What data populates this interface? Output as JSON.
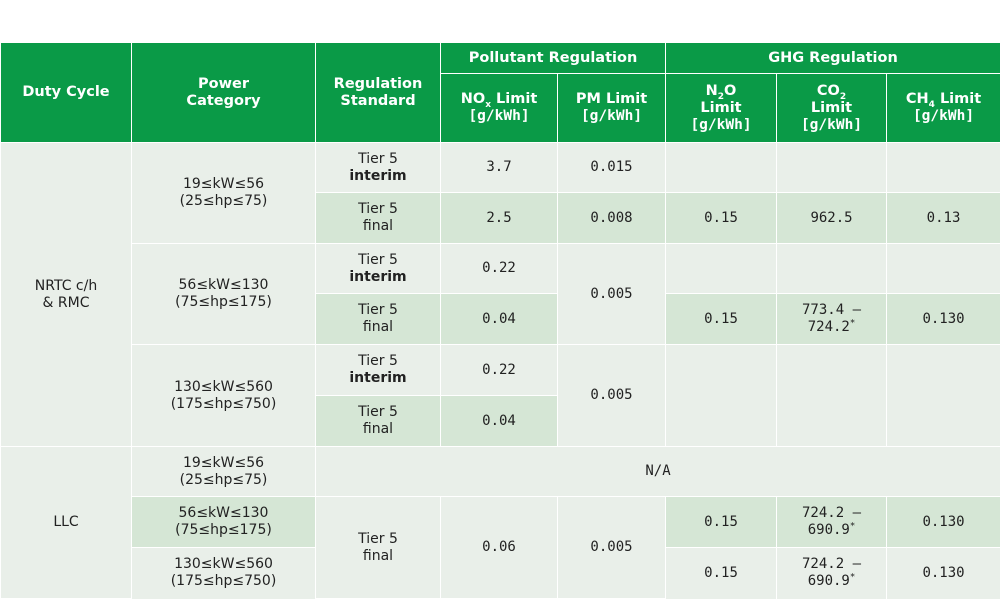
{
  "headers": {
    "duty_cycle": "Duty Cycle",
    "power_category": [
      "Power",
      "Category"
    ],
    "regulation_standard": [
      "Regulation",
      "Standard"
    ],
    "pollutant_regulation": "Pollutant Regulation",
    "ghg_regulation": "GHG Regulation",
    "nox": {
      "pre": "NO",
      "sub": "x",
      "post": " Limit",
      "unit": "[g/kWh]"
    },
    "pm": {
      "text": "PM Limit",
      "unit": "[g/kWh]"
    },
    "n2o": {
      "pre": "N",
      "sub": "2",
      "post": "O",
      "line2": "Limit",
      "unit": "[g/kWh]"
    },
    "co2": {
      "pre": "CO",
      "sub": "2",
      "line2": "Limit",
      "unit": "[g/kWh]"
    },
    "ch4": {
      "pre": "CH",
      "sub": "4",
      "post": " Limit",
      "unit": "[g/kWh]"
    }
  },
  "nrtc": {
    "duty_cycle": [
      "NRTC c/h",
      "& RMC"
    ],
    "power": [
      [
        "19≤kW≤56",
        "(25≤hp≤75)"
      ],
      [
        "56≤kW≤130",
        "(75≤hp≤175)"
      ],
      [
        "130≤kW≤560",
        "(175≤hp≤750)"
      ]
    ],
    "tier": "Tier 5",
    "interim": "interim",
    "final": "final",
    "g1": {
      "nox_interim": "3.7",
      "pm_interim": "0.015",
      "nox_final": "2.5",
      "pm_final": "0.008",
      "n2o": "0.15",
      "co2": "962.5",
      "ch4": "0.13"
    },
    "g2": {
      "nox_interim": "0.22",
      "nox_final": "0.04",
      "pm": "0.005",
      "n2o": "0.15",
      "co2": [
        "773.4 –",
        "724.2"
      ],
      "ch4": "0.130"
    },
    "g3": {
      "nox_interim": "0.22",
      "nox_final": "0.04",
      "pm": "0.005"
    }
  },
  "llc": {
    "duty_cycle": "LLC",
    "power": [
      [
        "19≤kW≤56",
        "(25≤hp≤75)"
      ],
      [
        "56≤kW≤130",
        "(75≤hp≤175)"
      ],
      [
        "130≤kW≤560",
        "(175≤hp≤750)"
      ]
    ],
    "na": "N/A",
    "tier": "Tier 5",
    "final": "final",
    "nox": "0.06",
    "pm": "0.005",
    "row2": {
      "n2o": "0.15",
      "co2": [
        "724.2 –",
        "690.9"
      ],
      "ch4": "0.130"
    },
    "row3": {
      "n2o": "0.15",
      "co2": [
        "724.2 –",
        "690.9"
      ],
      "ch4": "0.130"
    }
  },
  "asterisk": "*"
}
